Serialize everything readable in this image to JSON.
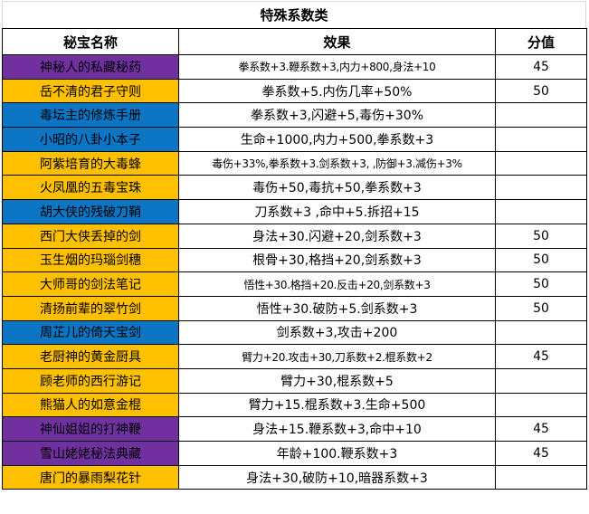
{
  "title": "特殊系数类",
  "colors": {
    "purple": "#7030A0",
    "blue": "#0C76C4",
    "orange": "#FFC000"
  },
  "table": {
    "headers": [
      "秘宝名称",
      "效果",
      "分值"
    ],
    "rows": [
      {
        "name": "神秘人的私藏秘药",
        "effect": "拳系数+3.鞭系数+3,内力+800,身法+10",
        "score": "45",
        "color": "purple"
      },
      {
        "name": "岳不清的君子守则",
        "effect": "拳系数+5.内伤几率+50%",
        "score": "50",
        "color": "orange"
      },
      {
        "name": "毒坛主的修炼手册",
        "effect": "拳系数+3,闪避+5,毒伤+30%",
        "score": "",
        "color": "blue"
      },
      {
        "name": "小昭的八卦小本子",
        "effect": "生命+1000,内力+500,拳系数+3",
        "score": "",
        "color": "blue"
      },
      {
        "name": "阿紫培育的大毒蜂",
        "effect": "毒伤+33%,拳系数+3.剑系数+3, ,防御+3.减伤+3%",
        "score": "",
        "color": "orange"
      },
      {
        "name": "火凤凰的五毒宝珠",
        "effect": "毒伤+50,毒抗+50,拳系数+3",
        "score": "",
        "color": "orange"
      },
      {
        "name": "胡大侠的残破刀鞘",
        "effect": "刀系数+3 ,命中+5.拆招+15",
        "score": "",
        "color": "blue"
      },
      {
        "name": "西门大侠丢掉的剑",
        "effect": "身法+30.闪避+20,剑系数+3",
        "score": "50",
        "color": "orange"
      },
      {
        "name": "玉生烟的玛瑙剑穗",
        "effect": "根骨+30,格挡+20,剑系数+3",
        "score": "50",
        "color": "orange"
      },
      {
        "name": "大师哥的剑法笔记",
        "effect": "悟性+30.格挡+20.反击+20,剑系数+3",
        "score": "50",
        "color": "orange"
      },
      {
        "name": "清扬前辈的翠竹剑",
        "effect": "悟性+30.破防+5.剑系数+3",
        "score": "50",
        "color": "orange"
      },
      {
        "name": "周芷儿的倚天宝剑",
        "effect": "剑系数+3,攻击+200",
        "score": "",
        "color": "blue"
      },
      {
        "name": "老厨神的黄金厨具",
        "effect": "臂力+20.攻击+30,刀系数+2.棍系数+2",
        "score": "45",
        "color": "orange"
      },
      {
        "name": "顾老师的西行游记",
        "effect": "臂力+30,棍系数+5",
        "score": "",
        "color": "orange"
      },
      {
        "name": "熊猫人的如意金棍",
        "effect": "臂力+15.棍系数+3.生命+500",
        "score": "",
        "color": "orange"
      },
      {
        "name": "神仙姐姐的打神鞭",
        "effect": "身法+15.鞭系数+3,命中+10",
        "score": "45",
        "color": "purple"
      },
      {
        "name": "雪山姥姥秘法典藏",
        "effect": "年龄+100.鞭系数+3",
        "score": "45",
        "color": "purple"
      },
      {
        "name": "唐门的暴雨梨花针",
        "effect": "身法+30,破防+10,暗器系数+3",
        "score": "",
        "color": "orange"
      }
    ]
  }
}
